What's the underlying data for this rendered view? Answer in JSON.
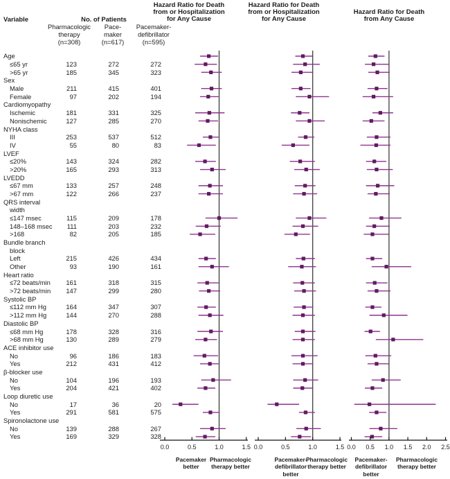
{
  "table": {
    "variable_header": "Variable",
    "patients_header": "No. of Patients",
    "column_headers": [
      [
        "Pharmacologic",
        "therapy",
        "(n=308)"
      ],
      [
        "Pace-",
        "maker",
        "(n=617)"
      ],
      [
        "Pacemaker-",
        "defibrillator",
        "(n=595)"
      ]
    ]
  },
  "colors": {
    "ci_line": "#8d338d",
    "marker": "#611b61",
    "axis": "#111111",
    "refline": "#2e2e2e",
    "text": "#1c1c1c"
  },
  "chart_data": {
    "type": "forest",
    "orientation": "horizontal",
    "value_format": "hazard ratio [point, lower CI, upper CI]",
    "panels": [
      {
        "title": [
          "Hazard Ratio for Death",
          "from or Hospitalization",
          "for Any Cause"
        ],
        "ticks": [
          0.0,
          0.5,
          1.0,
          1.5
        ],
        "xlim": [
          0,
          1.5
        ],
        "refline": 1.0,
        "series_key": "p1",
        "better_left": [
          "Pacemaker",
          "better"
        ],
        "better_right": [
          "Pharmacologic",
          "therapy better"
        ]
      },
      {
        "title": [
          "Hazard Ratio for Death",
          "from or Hospitalization",
          "for Any Cause"
        ],
        "ticks": [
          0.0,
          0.5,
          1.0,
          1.5
        ],
        "xlim": [
          0,
          1.5
        ],
        "refline": 1.0,
        "series_key": "p2",
        "better_left": [
          "Pacemaker-",
          "defibrillator",
          "better"
        ],
        "better_right": [
          "Pharmacologic",
          "therapy better"
        ]
      },
      {
        "title": [
          "Hazard Ratio for Death",
          "from Any Cause"
        ],
        "ticks": [
          0.0,
          0.5,
          1.0,
          1.5,
          2.0,
          2.5
        ],
        "xlim": [
          0,
          2.5
        ],
        "refline": 1.0,
        "series_key": "p3",
        "better_left": [
          "Pacemaker-",
          "defibrillator",
          "better"
        ],
        "better_right": [
          "Pharmacologic",
          "therapy better"
        ]
      }
    ],
    "rows": [
      {
        "label": "Age",
        "indent": 0,
        "group": true,
        "p1": [
          0.81,
          0.65,
          0.98
        ],
        "p2": [
          0.82,
          0.68,
          0.99
        ],
        "p3": [
          0.64,
          0.45,
          0.88
        ]
      },
      {
        "label": "≤65 yr",
        "indent": 1,
        "n": [
          123,
          272,
          272
        ],
        "p1": [
          0.75,
          0.55,
          0.96
        ],
        "p2": [
          0.86,
          0.64,
          1.13
        ],
        "p3": [
          0.59,
          0.36,
          0.99
        ]
      },
      {
        "label": ">65 yr",
        "indent": 1,
        "n": [
          185,
          345,
          323
        ],
        "p1": [
          0.85,
          0.67,
          1.05
        ],
        "p2": [
          0.78,
          0.61,
          0.99
        ],
        "p3": [
          0.69,
          0.45,
          1.02
        ]
      },
      {
        "label": "Sex",
        "indent": 0,
        "group": true
      },
      {
        "label": "Male",
        "indent": 1,
        "n": [
          211,
          415,
          401
        ],
        "p1": [
          0.86,
          0.67,
          1.05
        ],
        "p2": [
          0.78,
          0.61,
          0.96
        ],
        "p3": [
          0.67,
          0.43,
          0.96
        ]
      },
      {
        "label": "Female",
        "indent": 1,
        "n": [
          97,
          202,
          194
        ],
        "p1": [
          0.8,
          0.65,
          0.99
        ],
        "p2": [
          0.94,
          0.69,
          1.3
        ],
        "p3": [
          0.59,
          0.3,
          1.11
        ]
      },
      {
        "label": "Cardiomyopathy",
        "indent": 0,
        "group": true
      },
      {
        "label": "Ischemic",
        "indent": 1,
        "n": [
          181,
          331,
          325
        ],
        "p1": [
          0.82,
          0.56,
          1.1
        ],
        "p2": [
          0.76,
          0.6,
          0.94
        ],
        "p3": [
          0.77,
          0.56,
          1.11
        ]
      },
      {
        "label": "Nonischemic",
        "indent": 1,
        "n": [
          127,
          285,
          270
        ],
        "p1": [
          0.79,
          0.62,
          0.98
        ],
        "p2": [
          0.94,
          0.69,
          1.22
        ],
        "p3": [
          0.53,
          0.3,
          0.88
        ]
      },
      {
        "label": "NYHA class",
        "indent": 0,
        "group": true
      },
      {
        "label": "III",
        "indent": 1,
        "n": [
          253,
          537,
          512
        ],
        "p1": [
          0.84,
          0.7,
          0.99
        ],
        "p2": [
          0.87,
          0.73,
          1.03
        ],
        "p3": [
          0.67,
          0.41,
          1.04
        ]
      },
      {
        "label": "IV",
        "indent": 1,
        "n": [
          55,
          80,
          83
        ],
        "p1": [
          0.63,
          0.41,
          0.94
        ],
        "p2": [
          0.64,
          0.43,
          0.94
        ],
        "p3": [
          0.66,
          0.24,
          1.04
        ]
      },
      {
        "label": "LVEF",
        "indent": 0,
        "group": true
      },
      {
        "label": "≤20%",
        "indent": 1,
        "n": [
          143,
          324,
          282
        ],
        "p1": [
          0.74,
          0.56,
          0.94
        ],
        "p2": [
          0.77,
          0.58,
          1.04
        ],
        "p3": [
          0.61,
          0.39,
          0.93
        ]
      },
      {
        "label": ">20%",
        "indent": 1,
        "n": [
          165,
          293,
          313
        ],
        "p1": [
          0.87,
          0.65,
          1.12
        ],
        "p2": [
          0.88,
          0.66,
          1.13
        ],
        "p3": [
          0.67,
          0.41,
          1.1
        ]
      },
      {
        "label": "LVEDD",
        "indent": 0,
        "group": true
      },
      {
        "label": "≤67 mm",
        "indent": 1,
        "n": [
          133,
          257,
          248
        ],
        "p1": [
          0.83,
          0.62,
          1.07
        ],
        "p2": [
          0.86,
          0.67,
          1.05
        ],
        "p3": [
          0.7,
          0.39,
          1.14
        ]
      },
      {
        "label": ">67 mm",
        "indent": 1,
        "n": [
          122,
          266,
          237
        ],
        "p1": [
          0.81,
          0.62,
          1.07
        ],
        "p2": [
          0.84,
          0.64,
          1.08
        ],
        "p3": [
          0.65,
          0.43,
          1.02
        ]
      },
      {
        "label": "QRS interval",
        "indent": 0,
        "group": true
      },
      {
        "label": "width",
        "indent": 1,
        "group": true
      },
      {
        "label": "≤147 msec",
        "indent": 1,
        "n": [
          115,
          209,
          178
        ],
        "p1": [
          1.0,
          0.75,
          1.34
        ],
        "p2": [
          0.94,
          0.69,
          1.25
        ],
        "p3": [
          0.8,
          0.47,
          1.33
        ]
      },
      {
        "label": "148–168 msec",
        "indent": 1,
        "n": [
          111,
          203,
          232
        ],
        "p1": [
          0.77,
          0.57,
          1.03
        ],
        "p2": [
          0.82,
          0.63,
          1.1
        ],
        "p3": [
          0.61,
          0.39,
          1.02
        ]
      },
      {
        "label": ">168",
        "indent": 1,
        "n": [
          82,
          205,
          185
        ],
        "p1": [
          0.65,
          0.46,
          0.93
        ],
        "p2": [
          0.69,
          0.48,
          0.95
        ],
        "p3": [
          0.56,
          0.33,
          0.99
        ]
      },
      {
        "label": "Bundle branch",
        "indent": 0,
        "group": true
      },
      {
        "label": "block",
        "indent": 1,
        "group": true
      },
      {
        "label": "Left",
        "indent": 1,
        "n": [
          215,
          426,
          434
        ],
        "p1": [
          0.76,
          0.62,
          0.94
        ],
        "p2": [
          0.83,
          0.69,
          1.04
        ],
        "p3": [
          0.56,
          0.39,
          0.82
        ]
      },
      {
        "label": "Other",
        "indent": 1,
        "n": [
          93,
          190,
          161
        ],
        "p1": [
          0.87,
          0.62,
          1.18
        ],
        "p2": [
          0.8,
          0.55,
          1.06
        ],
        "p3": [
          0.93,
          0.54,
          1.59
        ]
      },
      {
        "label": "Heart ratio",
        "indent": 0,
        "group": true
      },
      {
        "label": "≤72 beats/min",
        "indent": 1,
        "n": [
          161,
          318,
          315
        ],
        "p1": [
          0.78,
          0.6,
          0.99
        ],
        "p2": [
          0.81,
          0.64,
          1.04
        ],
        "p3": [
          0.62,
          0.39,
          0.96
        ]
      },
      {
        "label": ">72 beats/min",
        "indent": 1,
        "n": [
          147,
          299,
          280
        ],
        "p1": [
          0.81,
          0.63,
          1.02
        ],
        "p2": [
          0.84,
          0.66,
          1.06
        ],
        "p3": [
          0.67,
          0.43,
          1.04
        ]
      },
      {
        "label": "Systolic BP",
        "indent": 0,
        "group": true
      },
      {
        "label": "≤112 mm Hg",
        "indent": 1,
        "n": [
          164,
          347,
          307
        ],
        "p1": [
          0.76,
          0.6,
          0.94
        ],
        "p2": [
          0.84,
          0.65,
          1.01
        ],
        "p3": [
          0.56,
          0.37,
          0.8
        ]
      },
      {
        "label": ">112 mm Hg",
        "indent": 1,
        "n": [
          144,
          270,
          288
        ],
        "p1": [
          0.83,
          0.62,
          1.08
        ],
        "p2": [
          0.82,
          0.63,
          1.04
        ],
        "p3": [
          0.86,
          0.48,
          1.49
        ]
      },
      {
        "label": "Diastolic BP",
        "indent": 0,
        "group": true
      },
      {
        "label": "≤68 mm Hg",
        "indent": 1,
        "n": [
          178,
          328,
          316
        ],
        "p1": [
          0.85,
          0.6,
          1.07
        ],
        "p2": [
          0.82,
          0.67,
          1.05
        ],
        "p3": [
          0.51,
          0.35,
          0.76
        ]
      },
      {
        "label": ">68 mm Hg",
        "indent": 1,
        "n": [
          130,
          289,
          279
        ],
        "p1": [
          0.75,
          0.56,
          0.96
        ],
        "p2": [
          0.82,
          0.63,
          1.04
        ],
        "p3": [
          1.11,
          0.65,
          1.91
        ]
      },
      {
        "label": "ACE inhibitor use",
        "indent": 0,
        "group": true
      },
      {
        "label": "No",
        "indent": 1,
        "n": [
          96,
          186,
          183
        ],
        "p1": [
          0.73,
          0.53,
          0.98
        ],
        "p2": [
          0.82,
          0.61,
          1.09
        ],
        "p3": [
          0.64,
          0.37,
          1.06
        ]
      },
      {
        "label": "Yes",
        "indent": 1,
        "n": [
          212,
          431,
          412
        ],
        "p1": [
          0.83,
          0.65,
          0.99
        ],
        "p2": [
          0.82,
          0.63,
          1.01
        ],
        "p3": [
          0.67,
          0.43,
          0.99
        ]
      },
      {
        "label": "β-blocker use",
        "indent": 0,
        "group": true
      },
      {
        "label": "No",
        "indent": 1,
        "n": [
          104,
          196,
          193
        ],
        "p1": [
          0.89,
          0.67,
          1.22
        ],
        "p2": [
          0.86,
          0.64,
          1.1
        ],
        "p3": [
          0.84,
          0.54,
          1.31
        ]
      },
      {
        "label": "Yes",
        "indent": 1,
        "n": [
          204,
          421,
          402
        ],
        "p1": [
          0.75,
          0.6,
          0.93
        ],
        "p2": [
          0.81,
          0.64,
          0.99
        ],
        "p3": [
          0.56,
          0.36,
          0.82
        ]
      },
      {
        "label": "Loop diuretic use",
        "indent": 0,
        "group": true
      },
      {
        "label": "No",
        "indent": 1,
        "n": [
          17,
          36,
          20
        ],
        "p1": [
          0.29,
          0.14,
          0.62
        ],
        "p2": [
          0.34,
          0.17,
          0.75
        ],
        "p3": [
          0.48,
          0.08,
          2.24
        ]
      },
      {
        "label": "Yes",
        "indent": 1,
        "n": [
          291,
          581,
          575
        ],
        "p1": [
          0.84,
          0.7,
          1.01
        ],
        "p2": [
          0.87,
          0.75,
          1.04
        ],
        "p3": [
          0.67,
          0.47,
          0.93
        ]
      },
      {
        "label": "Spironolactone use",
        "indent": 0,
        "group": true
      },
      {
        "label": "No",
        "indent": 1,
        "n": [
          139,
          288,
          267
        ],
        "p1": [
          0.87,
          0.65,
          1.12
        ],
        "p2": [
          0.88,
          0.7,
          1.15
        ],
        "p3": [
          0.78,
          0.48,
          1.22
        ]
      },
      {
        "label": "Yes",
        "indent": 1,
        "n": [
          169,
          329,
          328
        ],
        "p1": [
          0.74,
          0.57,
          0.93
        ],
        "p2": [
          0.76,
          0.6,
          0.97
        ],
        "p3": [
          0.55,
          0.35,
          0.82
        ]
      }
    ]
  }
}
